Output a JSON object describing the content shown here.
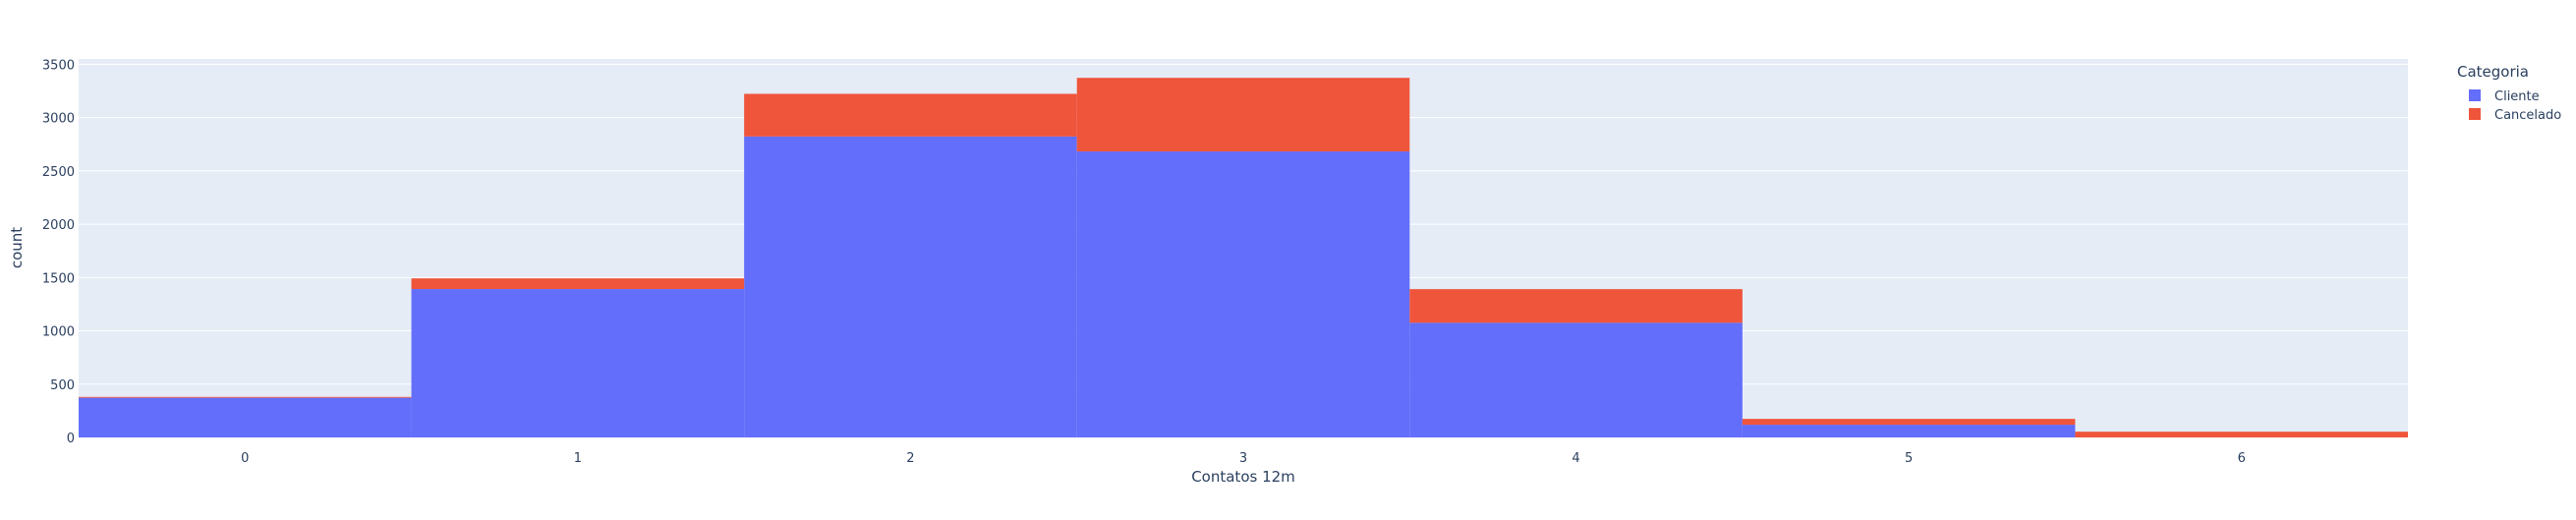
{
  "chart_data": {
    "type": "bar",
    "barmode": "stack",
    "title": "",
    "xlabel": "Contatos 12m",
    "ylabel": "count",
    "categories": [
      "0",
      "1",
      "2",
      "3",
      "4",
      "5",
      "6"
    ],
    "x": [
      0,
      1,
      2,
      3,
      4,
      5,
      6
    ],
    "ylim": [
      0,
      3550
    ],
    "yticks": [
      0,
      500,
      1000,
      1500,
      2000,
      2500,
      3000,
      3500
    ],
    "series": [
      {
        "name": "Cliente",
        "color": "#636efa",
        "values": [
          372,
          1392,
          2823,
          2683,
          1076,
          119,
          0
        ]
      },
      {
        "name": "Cancelado",
        "color": "#ef553b",
        "values": [
          8,
          100,
          400,
          690,
          315,
          55,
          54
        ]
      }
    ],
    "legend": {
      "title": "Categoria",
      "position": "top-right"
    },
    "grid": true,
    "plot_bgcolor": "#e5ecf6"
  }
}
